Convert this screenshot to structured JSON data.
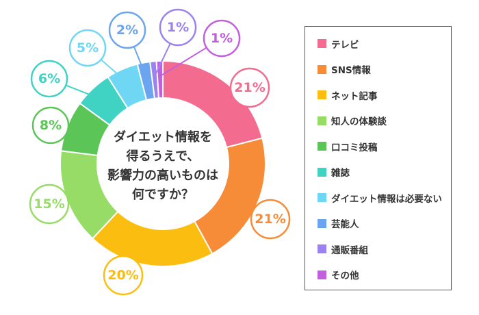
{
  "chart_data": {
    "type": "donut",
    "center_text": [
      "ダイエット情報を",
      "得るうえで、",
      "影響力の高いものは",
      "何ですか？"
    ],
    "categories": [
      "テレビ",
      "SNS情報",
      "ネット記事",
      "知人の体験談",
      "口コミ投稿",
      "雑誌",
      "ダイエット情報は必要ない",
      "芸能人",
      "通販番組",
      "その他"
    ],
    "values": [
      21,
      21,
      20,
      15,
      8,
      6,
      5,
      2,
      1,
      1
    ],
    "value_labels": [
      "21%",
      "21%",
      "20%",
      "15%",
      "8%",
      "6%",
      "5%",
      "2%",
      "1%",
      "1%"
    ],
    "colors": [
      "#f36b8f",
      "#f78c38",
      "#fbbd10",
      "#97dc66",
      "#5cc557",
      "#40d2c3",
      "#6fd7f3",
      "#6ba5ef",
      "#9b82f0",
      "#c25fdc"
    ],
    "legend_position": "right"
  }
}
